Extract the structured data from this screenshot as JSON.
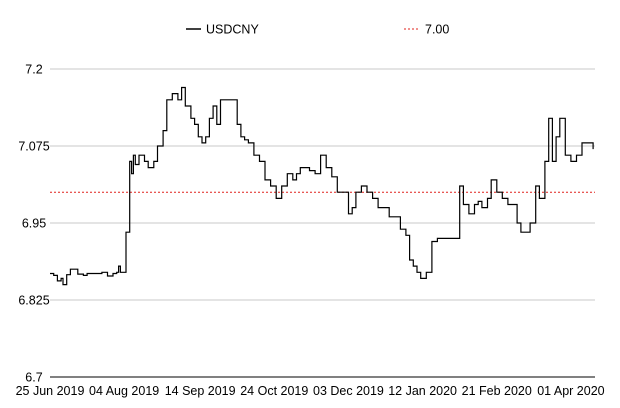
{
  "chart_data": {
    "type": "line",
    "legend": {
      "placement": "top-center",
      "entries": [
        "USDCNY",
        "7.00"
      ]
    },
    "ylim": [
      6.7,
      7.2
    ],
    "yticks": [
      6.7,
      6.825,
      6.95,
      7.075,
      7.2
    ],
    "ytick_labels": [
      "6.7",
      "6.825",
      "6.95",
      "7.075",
      "7.2"
    ],
    "xlim": [
      "2019-06-25",
      "2020-04-14"
    ],
    "xticks": [
      "2019-06-25",
      "2019-08-04",
      "2019-09-14",
      "2019-10-24",
      "2019-12-03",
      "2020-01-12",
      "2020-02-21",
      "2020-04-01"
    ],
    "xtick_labels": [
      "25 Jun 2019",
      "04 Aug 2019",
      "14 Sep 2019",
      "24 Oct 2019",
      "03 Dec 2019",
      "12 Jan 2020",
      "21 Feb 2020",
      "01 Apr 2020"
    ],
    "grid": {
      "y": true,
      "x": false
    },
    "colors": {
      "series": "#000000",
      "reference": "#e0201b",
      "grid": "#c8c8c8"
    },
    "reference_lines": [
      {
        "name": "7.00",
        "y": 7.0,
        "style": "dashed"
      }
    ],
    "series": [
      {
        "name": "USDCNY",
        "x": [
          "2019-06-25",
          "2019-06-27",
          "2019-06-29",
          "2019-07-01",
          "2019-07-02",
          "2019-07-04",
          "2019-07-06",
          "2019-07-08",
          "2019-07-10",
          "2019-07-13",
          "2019-07-15",
          "2019-07-17",
          "2019-07-20",
          "2019-07-23",
          "2019-07-26",
          "2019-07-29",
          "2019-07-31",
          "2019-08-01",
          "2019-08-02",
          "2019-08-03",
          "2019-08-05",
          "2019-08-06",
          "2019-08-07",
          "2019-08-08",
          "2019-08-09",
          "2019-08-10",
          "2019-08-12",
          "2019-08-15",
          "2019-08-17",
          "2019-08-20",
          "2019-08-22",
          "2019-08-25",
          "2019-08-27",
          "2019-08-30",
          "2019-09-02",
          "2019-09-04",
          "2019-09-06",
          "2019-09-09",
          "2019-09-11",
          "2019-09-13",
          "2019-09-15",
          "2019-09-17",
          "2019-09-19",
          "2019-09-21",
          "2019-09-23",
          "2019-09-25",
          "2019-09-27",
          "2019-10-01",
          "2019-10-04",
          "2019-10-06",
          "2019-10-08",
          "2019-10-10",
          "2019-10-13",
          "2019-10-16",
          "2019-10-19",
          "2019-10-22",
          "2019-10-25",
          "2019-10-28",
          "2019-10-31",
          "2019-11-03",
          "2019-11-05",
          "2019-11-07",
          "2019-11-09",
          "2019-11-12",
          "2019-11-15",
          "2019-11-18",
          "2019-11-21",
          "2019-11-24",
          "2019-11-27",
          "2019-11-30",
          "2019-12-03",
          "2019-12-05",
          "2019-12-07",
          "2019-12-10",
          "2019-12-13",
          "2019-12-16",
          "2019-12-19",
          "2019-12-22",
          "2019-12-25",
          "2019-12-28",
          "2019-12-31",
          "2020-01-03",
          "2020-01-05",
          "2020-01-07",
          "2020-01-09",
          "2020-01-11",
          "2020-01-13",
          "2020-01-14",
          "2020-01-17",
          "2020-01-20",
          "2020-01-22",
          "2020-01-24",
          "2020-01-28",
          "2020-02-01",
          "2020-02-03",
          "2020-02-06",
          "2020-02-09",
          "2020-02-11",
          "2020-02-13",
          "2020-02-16",
          "2020-02-18",
          "2020-02-21",
          "2020-02-24",
          "2020-02-27",
          "2020-03-01",
          "2020-03-03",
          "2020-03-05",
          "2020-03-08",
          "2020-03-10",
          "2020-03-13",
          "2020-03-15",
          "2020-03-18",
          "2020-03-20",
          "2020-03-22",
          "2020-03-24",
          "2020-03-26",
          "2020-03-29",
          "2020-04-01",
          "2020-04-04",
          "2020-04-07",
          "2020-04-10",
          "2020-04-13"
        ],
        "values": [
          6.868,
          6.865,
          6.856,
          6.86,
          6.85,
          6.866,
          6.875,
          6.875,
          6.867,
          6.865,
          6.868,
          6.868,
          6.868,
          6.87,
          6.864,
          6.868,
          6.87,
          6.88,
          6.87,
          6.87,
          6.935,
          6.935,
          7.05,
          7.03,
          7.06,
          7.045,
          7.06,
          7.05,
          7.04,
          7.05,
          7.075,
          7.1,
          7.15,
          7.16,
          7.15,
          7.17,
          7.14,
          7.12,
          7.11,
          7.09,
          7.08,
          7.09,
          7.12,
          7.14,
          7.11,
          7.15,
          7.15,
          7.15,
          7.11,
          7.09,
          7.085,
          7.08,
          7.06,
          7.05,
          7.02,
          7.01,
          6.99,
          7.01,
          7.03,
          7.02,
          7.03,
          7.04,
          7.04,
          7.035,
          7.03,
          7.06,
          7.04,
          7.025,
          7.0,
          7.0,
          6.965,
          6.975,
          7.0,
          7.01,
          7.0,
          6.99,
          6.975,
          6.975,
          6.96,
          6.96,
          6.94,
          6.93,
          6.89,
          6.88,
          6.87,
          6.86,
          6.86,
          6.87,
          6.92,
          6.925,
          6.925,
          6.925,
          6.925,
          7.01,
          6.98,
          6.965,
          6.98,
          6.985,
          6.975,
          6.99,
          7.02,
          7.0,
          6.99,
          6.98,
          6.98,
          6.95,
          6.935,
          6.935,
          6.95,
          7.01,
          6.99,
          7.05,
          7.12,
          7.05,
          7.09,
          7.12,
          7.06,
          7.05,
          7.06,
          7.08,
          7.08,
          7.07
        ]
      }
    ]
  }
}
